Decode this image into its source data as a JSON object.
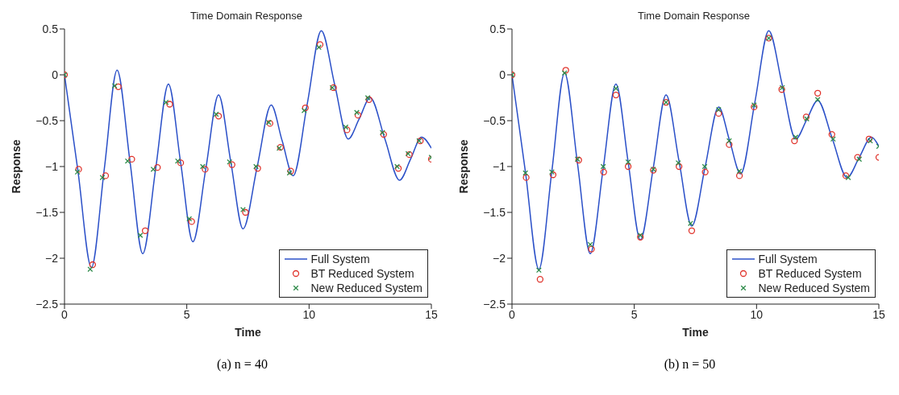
{
  "chart_data": [
    {
      "type": "line",
      "title": "Time Domain Response",
      "xlabel": "Time",
      "ylabel": "Response",
      "xlim": [
        0,
        15
      ],
      "xticks": [
        0,
        5,
        10,
        15
      ],
      "ylim": [
        -2.5,
        0.5
      ],
      "yticks": [
        -2.5,
        -2,
        -1.5,
        -1,
        -0.5,
        0,
        0.5
      ],
      "grid": false,
      "legend": "bottom right",
      "annotations": [
        "(a) n = 40"
      ],
      "series": [
        {
          "name": "Full System",
          "type": "line",
          "marker": "none",
          "line_style": "solid",
          "color": "#2b50c8",
          "x": [
            0,
            0.55,
            1.1,
            1.63,
            2.15,
            2.68,
            3.2,
            3.73,
            4.25,
            4.75,
            5.25,
            5.78,
            6.3,
            6.8,
            7.3,
            7.88,
            8.45,
            8.9,
            9.35,
            9.93,
            10.5,
            11.05,
            11.6,
            12.05,
            12.5,
            13.1,
            13.7,
            14.15,
            14.6,
            15
          ],
          "values": [
            0,
            -1.05,
            -2.1,
            -1.02,
            0.05,
            -0.95,
            -1.95,
            -1.02,
            -0.1,
            -0.96,
            -1.82,
            -1.02,
            -0.22,
            -0.95,
            -1.68,
            -1.0,
            -0.33,
            -0.72,
            -1.1,
            -0.31,
            0.48,
            -0.11,
            -0.7,
            -0.48,
            -0.25,
            -0.7,
            -1.15,
            -0.92,
            -0.68,
            -0.8
          ]
        },
        {
          "name": "BT Reduced System",
          "type": "scatter",
          "marker": "circle",
          "color": "#e0342c",
          "x": [
            0,
            0.58,
            1.15,
            1.68,
            2.2,
            2.75,
            3.3,
            3.8,
            4.3,
            4.75,
            5.2,
            5.75,
            6.3,
            6.85,
            7.4,
            7.9,
            8.4,
            8.83,
            9.25,
            9.85,
            10.45,
            11.0,
            11.55,
            12.0,
            12.45,
            13.05,
            13.65,
            14.1,
            14.55,
            15
          ],
          "values": [
            0,
            -1.03,
            -2.07,
            -1.1,
            -0.13,
            -0.92,
            -1.7,
            -1.01,
            -0.32,
            -0.96,
            -1.6,
            -1.03,
            -0.45,
            -0.98,
            -1.5,
            -1.02,
            -0.53,
            -0.79,
            -1.05,
            -0.36,
            0.33,
            -0.14,
            -0.6,
            -0.44,
            -0.27,
            -0.65,
            -1.02,
            -0.87,
            -0.72,
            -0.92
          ]
        },
        {
          "name": "New Reduced System",
          "type": "scatter",
          "marker": "cross",
          "color": "#2e8b4a",
          "x": [
            0,
            0.53,
            1.05,
            1.55,
            2.05,
            2.58,
            3.1,
            3.63,
            4.15,
            4.63,
            5.1,
            5.65,
            6.2,
            6.75,
            7.3,
            7.83,
            8.35,
            8.78,
            9.2,
            9.8,
            10.4,
            10.95,
            11.5,
            11.95,
            12.4,
            13.0,
            13.6,
            14.05,
            14.5,
            15
          ],
          "values": [
            0,
            -1.06,
            -2.12,
            -1.12,
            -0.12,
            -0.94,
            -1.75,
            -1.03,
            -0.3,
            -0.94,
            -1.57,
            -1.0,
            -0.43,
            -0.95,
            -1.47,
            -1.0,
            -0.52,
            -0.8,
            -1.07,
            -0.39,
            0.3,
            -0.14,
            -0.57,
            -0.41,
            -0.25,
            -0.63,
            -1.0,
            -0.86,
            -0.72,
            -0.9
          ]
        }
      ]
    },
    {
      "type": "line",
      "title": "Time Domain Response",
      "xlabel": "Time",
      "ylabel": "Response",
      "xlim": [
        0,
        15
      ],
      "xticks": [
        0,
        5,
        10,
        15
      ],
      "ylim": [
        -2.5,
        0.5
      ],
      "yticks": [
        -2.5,
        -2,
        -1.5,
        -1,
        -0.5,
        0,
        0.5
      ],
      "grid": false,
      "legend": "bottom right",
      "annotations": [
        "(b) n = 50"
      ],
      "series": [
        {
          "name": "Full System",
          "type": "line",
          "marker": "none",
          "line_style": "solid",
          "color": "#2b50c8",
          "x": [
            0,
            0.55,
            1.1,
            1.63,
            2.15,
            2.68,
            3.2,
            3.73,
            4.25,
            4.75,
            5.25,
            5.78,
            6.3,
            6.83,
            7.35,
            7.9,
            8.45,
            8.9,
            9.35,
            9.93,
            10.5,
            11.05,
            11.6,
            12.05,
            12.5,
            13.1,
            13.7,
            14.2,
            14.7,
            15
          ],
          "values": [
            0,
            -1.06,
            -2.12,
            -1.05,
            0.02,
            -0.97,
            -1.95,
            -1.02,
            -0.1,
            -0.95,
            -1.8,
            -1.01,
            -0.22,
            -0.94,
            -1.65,
            -1.0,
            -0.35,
            -0.72,
            -1.08,
            -0.3,
            0.48,
            -0.11,
            -0.7,
            -0.49,
            -0.28,
            -0.7,
            -1.12,
            -0.9,
            -0.68,
            -0.78
          ]
        },
        {
          "name": "BT Reduced System",
          "type": "scatter",
          "marker": "circle",
          "color": "#e0342c",
          "x": [
            0,
            0.58,
            1.15,
            1.68,
            2.2,
            2.73,
            3.25,
            3.75,
            4.25,
            4.75,
            5.25,
            5.78,
            6.3,
            6.83,
            7.35,
            7.9,
            8.45,
            8.88,
            9.3,
            9.9,
            10.5,
            11.03,
            11.55,
            12.03,
            12.5,
            13.08,
            13.65,
            14.13,
            14.6,
            15
          ],
          "values": [
            0,
            -1.12,
            -2.23,
            -1.09,
            0.05,
            -0.93,
            -1.9,
            -1.06,
            -0.22,
            -1.0,
            -1.77,
            -1.04,
            -0.3,
            -1.0,
            -1.7,
            -1.06,
            -0.42,
            -0.76,
            -1.1,
            -0.35,
            0.4,
            -0.16,
            -0.72,
            -0.46,
            -0.2,
            -0.65,
            -1.1,
            -0.9,
            -0.7,
            -0.9
          ]
        },
        {
          "name": "New Reduced System",
          "type": "scatter",
          "marker": "cross",
          "color": "#2e8b4a",
          "x": [
            0,
            0.55,
            1.1,
            1.63,
            2.15,
            2.68,
            3.2,
            3.73,
            4.25,
            4.75,
            5.25,
            5.78,
            6.3,
            6.8,
            7.3,
            7.88,
            8.45,
            8.88,
            9.3,
            9.9,
            10.5,
            11.05,
            11.6,
            12.05,
            12.5,
            13.13,
            13.75,
            14.2,
            14.65,
            15
          ],
          "values": [
            0,
            -1.07,
            -2.13,
            -1.06,
            0.02,
            -0.92,
            -1.85,
            -1.0,
            -0.15,
            -0.95,
            -1.75,
            -1.03,
            -0.3,
            -0.96,
            -1.62,
            -1.0,
            -0.38,
            -0.72,
            -1.05,
            -0.33,
            0.4,
            -0.14,
            -0.68,
            -0.48,
            -0.27,
            -0.7,
            -1.12,
            -0.92,
            -0.72,
            -0.78
          ]
        }
      ]
    }
  ]
}
